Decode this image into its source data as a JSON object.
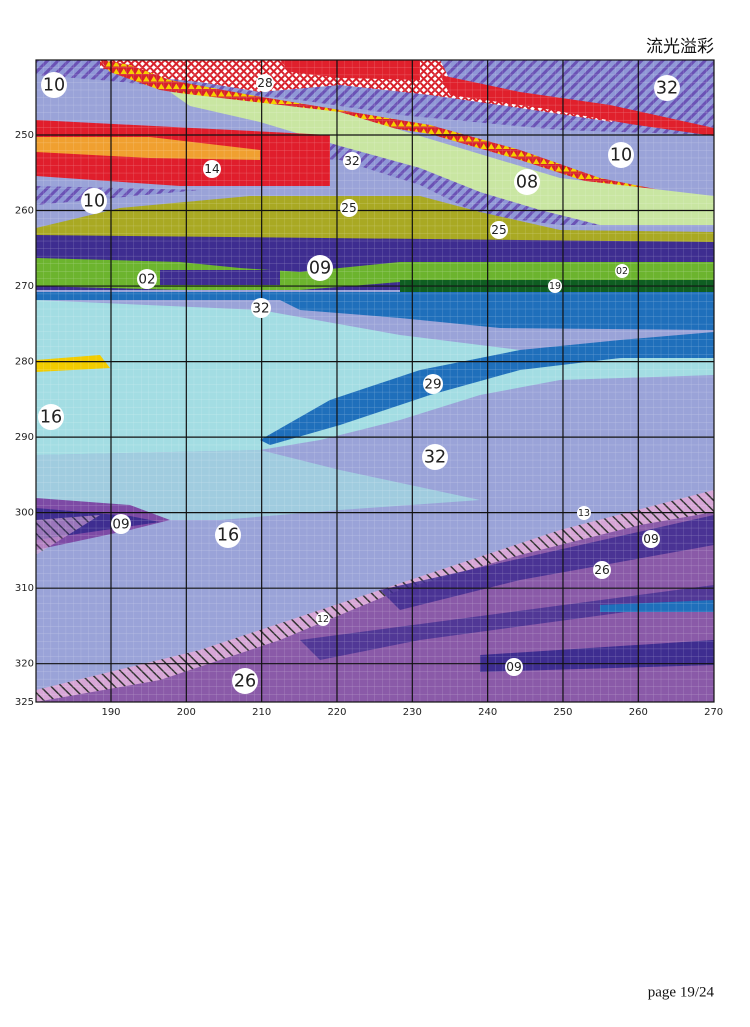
{
  "title": "流光溢彩",
  "page": "page 19/24",
  "pattern": {
    "x_ticks": [
      190,
      200,
      210,
      220,
      230,
      240,
      250,
      260,
      270
    ],
    "y_ticks": [
      250,
      260,
      270,
      280,
      290,
      300,
      310,
      320,
      325
    ],
    "symbols": [
      "10",
      "28",
      "32",
      "10",
      "32",
      "14",
      "08",
      "10",
      "25",
      "25",
      "09",
      "02",
      "02",
      "19",
      "32",
      "29",
      "16",
      "32",
      "13",
      "09",
      "16",
      "09",
      "26",
      "12",
      "09",
      "26"
    ]
  }
}
